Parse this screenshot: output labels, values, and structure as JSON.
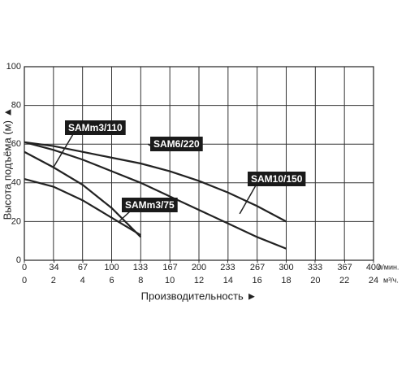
{
  "chart_data": {
    "type": "line",
    "xlabel": "Производительность ►",
    "ylabel": "Высота подъёма (м) ▲",
    "xlim": [
      0,
      24
    ],
    "xticks": [
      0,
      2,
      4,
      6,
      8,
      10,
      12,
      14,
      16,
      18,
      20,
      22,
      24
    ],
    "x_unit": "м³/ч.",
    "x2lim": [
      0,
      400
    ],
    "x2ticks": [
      0,
      34,
      67,
      100,
      133,
      167,
      200,
      233,
      267,
      300,
      333,
      367,
      400
    ],
    "x2_unit": "л/мин.",
    "ylim": [
      0,
      100
    ],
    "yticks": [
      0,
      20,
      40,
      60,
      80,
      100
    ],
    "grid": true,
    "series": [
      {
        "name": "SAMm3/110",
        "color": "#222222",
        "x": [
          0,
          2,
          4,
          6,
          8
        ],
        "values": [
          56,
          48,
          39,
          27,
          12
        ]
      },
      {
        "name": "SAMm3/75",
        "color": "#222222",
        "x": [
          0,
          2,
          4,
          6,
          8
        ],
        "values": [
          42,
          38,
          31,
          22,
          13
        ]
      },
      {
        "name": "SAM6/220",
        "color": "#222222",
        "x": [
          0,
          2,
          4,
          6,
          8,
          10,
          12,
          14,
          16,
          18
        ],
        "values": [
          61,
          59,
          56,
          53,
          50,
          46,
          41,
          35,
          28,
          20
        ]
      },
      {
        "name": "SAM10/150",
        "color": "#222222",
        "x": [
          0,
          2,
          4,
          6,
          8,
          10,
          12,
          14,
          16,
          18
        ],
        "values": [
          61,
          57,
          52,
          46,
          40,
          33,
          26,
          19,
          12,
          6
        ]
      }
    ]
  }
}
